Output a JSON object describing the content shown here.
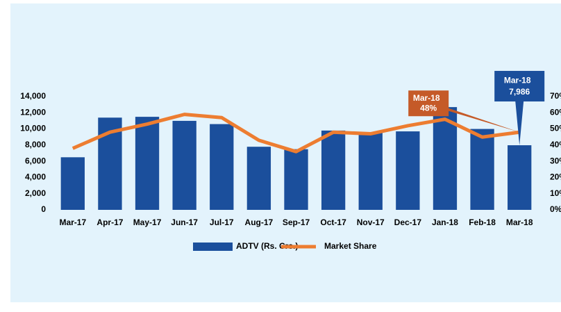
{
  "chart_data": {
    "type": "bar",
    "categories": [
      "Mar-17",
      "Apr-17",
      "May-17",
      "Jun-17",
      "Jul-17",
      "Aug-17",
      "Sep-17",
      "Oct-17",
      "Nov-17",
      "Dec-17",
      "Jan-18",
      "Feb-18",
      "Mar-18"
    ],
    "series": [
      {
        "name": "ADTV (Rs. Crs.)",
        "type": "bar",
        "color": "#1b4f9c",
        "values": [
          6500,
          11400,
          11500,
          11000,
          10600,
          7800,
          7500,
          9800,
          9600,
          9700,
          12700,
          10000,
          7986
        ],
        "value_labels": [
          null,
          null,
          null,
          null,
          null,
          null,
          null,
          null,
          null,
          null,
          null,
          null,
          "7,986"
        ]
      },
      {
        "name": "Market Share",
        "type": "line",
        "axis": "y2",
        "color": "#ed7d31",
        "values": [
          38,
          48,
          53,
          59,
          57,
          43,
          36,
          48,
          47,
          52,
          56,
          45,
          48
        ],
        "value_labels": [
          null,
          null,
          null,
          null,
          null,
          null,
          null,
          null,
          null,
          null,
          null,
          null,
          "48%"
        ]
      }
    ],
    "ylim": [
      0,
      14000
    ],
    "yticks": [
      0,
      {
        "value": 2000,
        "label": "2,000"
      },
      {
        "value": 4000,
        "label": "4,000"
      },
      {
        "value": 6000,
        "label": "6,000"
      },
      {
        "value": 8000,
        "label": "8,000"
      },
      {
        "value": 10000,
        "label": "10,000"
      },
      {
        "value": 12000,
        "label": "12,000"
      },
      {
        "value": 14000,
        "label": "14,000"
      }
    ],
    "y2lim": [
      0,
      70
    ],
    "y2ticks": [
      {
        "value": 0,
        "label": "0%"
      },
      {
        "value": 10,
        "label": "10%"
      },
      {
        "value": 20,
        "label": "20%"
      },
      {
        "value": 30,
        "label": "30%"
      },
      {
        "value": 40,
        "label": "40%"
      },
      {
        "value": 50,
        "label": "50%"
      },
      {
        "value": 60,
        "label": "60%"
      },
      {
        "value": 70,
        "label": "70%"
      }
    ],
    "grid": false,
    "legend": "bottom"
  }
}
